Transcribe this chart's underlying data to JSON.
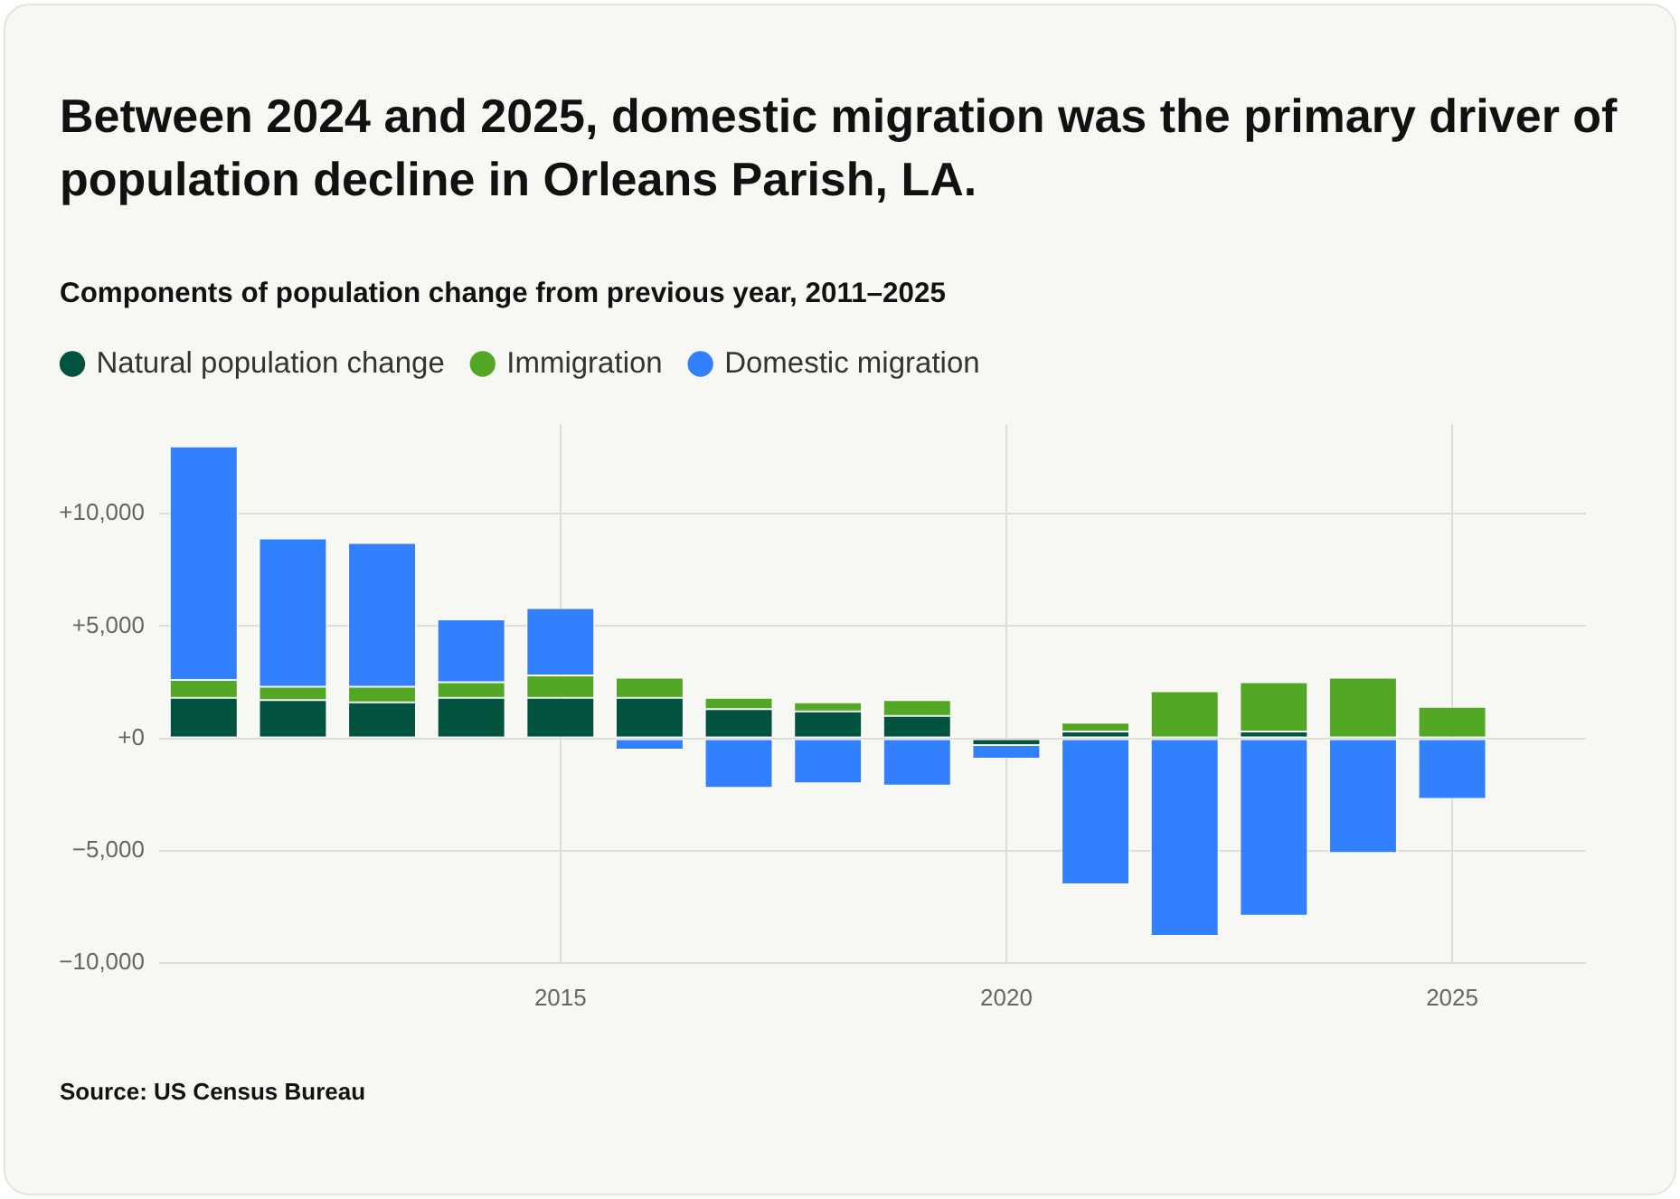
{
  "chart_data": {
    "type": "bar",
    "title": "Between 2024 and 2025, domestic migration was the primary driver of population decline in Orleans Parish, LA.",
    "subtitle": "Components of population change from previous year, 2011–2025",
    "x": [
      2011,
      2012,
      2013,
      2014,
      2015,
      2016,
      2017,
      2018,
      2019,
      2020,
      2021,
      2022,
      2023,
      2024,
      2025
    ],
    "xlim": [
      2010.5,
      2026.5
    ],
    "xticks": [
      2015,
      2020,
      2025
    ],
    "ylim": [
      -10000,
      14000
    ],
    "yticks": [
      {
        "value": -10000,
        "label": "−10,000"
      },
      {
        "value": -5000,
        "label": "−5,000"
      },
      {
        "value": 0,
        "label": "+0"
      },
      {
        "value": 5000,
        "label": "+5,000"
      },
      {
        "value": 10000,
        "label": "+10,000"
      }
    ],
    "stacked": true,
    "grid": true,
    "legend": "top left",
    "series": [
      {
        "name": "Natural population change",
        "color": "#01533f",
        "values": [
          1800,
          1700,
          1600,
          1800,
          1800,
          1800,
          1300,
          1200,
          1000,
          -300,
          300,
          null,
          300,
          null,
          null
        ]
      },
      {
        "name": "Immigration",
        "color": "#52a824",
        "values": [
          800,
          600,
          700,
          700,
          1000,
          900,
          500,
          400,
          700,
          null,
          400,
          2100,
          2200,
          2700,
          1400
        ]
      },
      {
        "name": "Domestic migration",
        "color": "#3380ff",
        "values": [
          10400,
          6600,
          6400,
          2800,
          3000,
          -500,
          -2200,
          -2000,
          -2100,
          -600,
          -6500,
          -8800,
          -7900,
          -5100,
          -2700
        ]
      }
    ],
    "annotations": [
      "Source: US Census Bureau"
    ]
  }
}
